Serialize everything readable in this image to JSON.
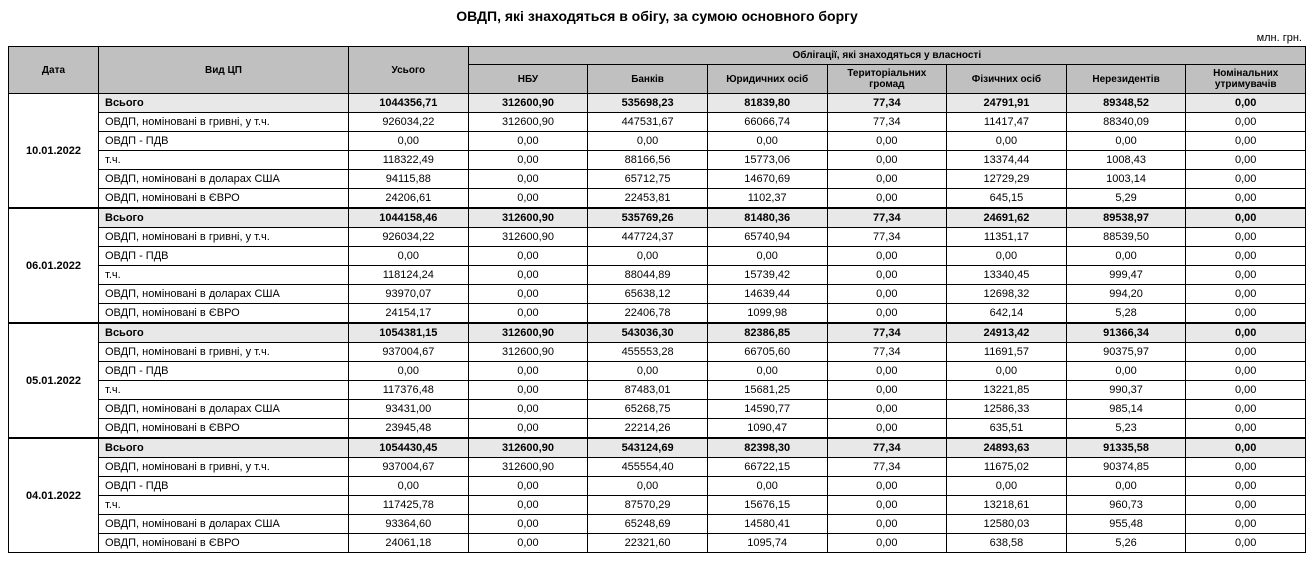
{
  "title": "ОВДП, які знаходяться в обігу, за сумою основного боргу",
  "unit": "млн. грн.",
  "headers": {
    "date": "Дата",
    "type": "Вид ЦП",
    "total": "Усього",
    "group": "Облігації, які знаходяться у власності",
    "cols": [
      "НБУ",
      "Банків",
      "Юридичних осіб",
      "Територіальних громад",
      "Фізичних осіб",
      "Нерезидентів",
      "Номінальних утримувачів"
    ]
  },
  "row_labels": {
    "total": "Всього",
    "uah": "ОВДП, номіновані в гривні, у т.ч.",
    "pdv": "ОВДП - ПДВ",
    "tch": "т.ч.",
    "usd": "ОВДП, номіновані в доларах США",
    "eur": "ОВДП, номіновані в ЄВРО"
  },
  "blocks": [
    {
      "date": "10.01.2022",
      "rows": [
        {
          "k": "total",
          "v": [
            "1044356,71",
            "312600,90",
            "535698,23",
            "81839,80",
            "77,34",
            "24791,91",
            "89348,52",
            "0,00"
          ]
        },
        {
          "k": "uah",
          "v": [
            "926034,22",
            "312600,90",
            "447531,67",
            "66066,74",
            "77,34",
            "11417,47",
            "88340,09",
            "0,00"
          ]
        },
        {
          "k": "pdv",
          "v": [
            "0,00",
            "0,00",
            "0,00",
            "0,00",
            "0,00",
            "0,00",
            "0,00",
            "0,00"
          ]
        },
        {
          "k": "tch",
          "v": [
            "118322,49",
            "0,00",
            "88166,56",
            "15773,06",
            "0,00",
            "13374,44",
            "1008,43",
            "0,00"
          ]
        },
        {
          "k": "usd",
          "v": [
            "94115,88",
            "0,00",
            "65712,75",
            "14670,69",
            "0,00",
            "12729,29",
            "1003,14",
            "0,00"
          ]
        },
        {
          "k": "eur",
          "v": [
            "24206,61",
            "0,00",
            "22453,81",
            "1102,37",
            "0,00",
            "645,15",
            "5,29",
            "0,00"
          ]
        }
      ]
    },
    {
      "date": "06.01.2022",
      "rows": [
        {
          "k": "total",
          "v": [
            "1044158,46",
            "312600,90",
            "535769,26",
            "81480,36",
            "77,34",
            "24691,62",
            "89538,97",
            "0,00"
          ]
        },
        {
          "k": "uah",
          "v": [
            "926034,22",
            "312600,90",
            "447724,37",
            "65740,94",
            "77,34",
            "11351,17",
            "88539,50",
            "0,00"
          ]
        },
        {
          "k": "pdv",
          "v": [
            "0,00",
            "0,00",
            "0,00",
            "0,00",
            "0,00",
            "0,00",
            "0,00",
            "0,00"
          ]
        },
        {
          "k": "tch",
          "v": [
            "118124,24",
            "0,00",
            "88044,89",
            "15739,42",
            "0,00",
            "13340,45",
            "999,47",
            "0,00"
          ]
        },
        {
          "k": "usd",
          "v": [
            "93970,07",
            "0,00",
            "65638,12",
            "14639,44",
            "0,00",
            "12698,32",
            "994,20",
            "0,00"
          ]
        },
        {
          "k": "eur",
          "v": [
            "24154,17",
            "0,00",
            "22406,78",
            "1099,98",
            "0,00",
            "642,14",
            "5,28",
            "0,00"
          ]
        }
      ]
    },
    {
      "date": "05.01.2022",
      "rows": [
        {
          "k": "total",
          "v": [
            "1054381,15",
            "312600,90",
            "543036,30",
            "82386,85",
            "77,34",
            "24913,42",
            "91366,34",
            "0,00"
          ]
        },
        {
          "k": "uah",
          "v": [
            "937004,67",
            "312600,90",
            "455553,28",
            "66705,60",
            "77,34",
            "11691,57",
            "90375,97",
            "0,00"
          ]
        },
        {
          "k": "pdv",
          "v": [
            "0,00",
            "0,00",
            "0,00",
            "0,00",
            "0,00",
            "0,00",
            "0,00",
            "0,00"
          ]
        },
        {
          "k": "tch",
          "v": [
            "117376,48",
            "0,00",
            "87483,01",
            "15681,25",
            "0,00",
            "13221,85",
            "990,37",
            "0,00"
          ]
        },
        {
          "k": "usd",
          "v": [
            "93431,00",
            "0,00",
            "65268,75",
            "14590,77",
            "0,00",
            "12586,33",
            "985,14",
            "0,00"
          ]
        },
        {
          "k": "eur",
          "v": [
            "23945,48",
            "0,00",
            "22214,26",
            "1090,47",
            "0,00",
            "635,51",
            "5,23",
            "0,00"
          ]
        }
      ]
    },
    {
      "date": "04.01.2022",
      "rows": [
        {
          "k": "total",
          "v": [
            "1054430,45",
            "312600,90",
            "543124,69",
            "82398,30",
            "77,34",
            "24893,63",
            "91335,58",
            "0,00"
          ]
        },
        {
          "k": "uah",
          "v": [
            "937004,67",
            "312600,90",
            "455554,40",
            "66722,15",
            "77,34",
            "11675,02",
            "90374,85",
            "0,00"
          ]
        },
        {
          "k": "pdv",
          "v": [
            "0,00",
            "0,00",
            "0,00",
            "0,00",
            "0,00",
            "0,00",
            "0,00",
            "0,00"
          ]
        },
        {
          "k": "tch",
          "v": [
            "117425,78",
            "0,00",
            "87570,29",
            "15676,15",
            "0,00",
            "13218,61",
            "960,73",
            "0,00"
          ]
        },
        {
          "k": "usd",
          "v": [
            "93364,60",
            "0,00",
            "65248,69",
            "14580,41",
            "0,00",
            "12580,03",
            "955,48",
            "0,00"
          ]
        },
        {
          "k": "eur",
          "v": [
            "24061,18",
            "0,00",
            "22321,60",
            "1095,74",
            "0,00",
            "638,58",
            "5,26",
            "0,00"
          ]
        }
      ]
    }
  ]
}
